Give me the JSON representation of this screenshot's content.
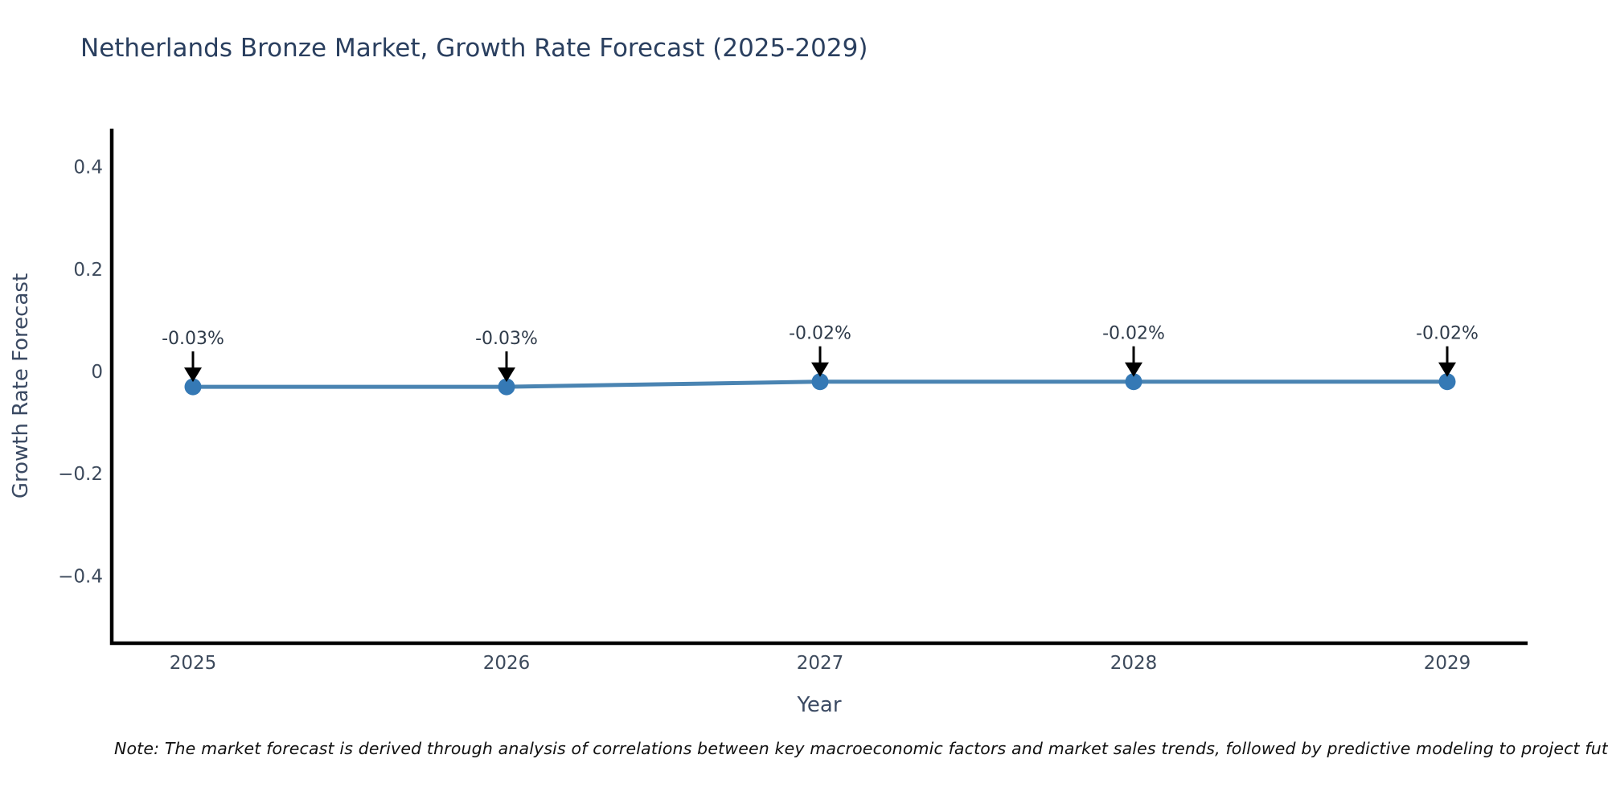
{
  "chart_data": {
    "type": "line",
    "title": "Netherlands Bronze Market, Growth Rate Forecast (2025-2029)",
    "xlabel": "Year",
    "ylabel": "Growth Rate Forecast",
    "categories": [
      "2025",
      "2026",
      "2027",
      "2028",
      "2029"
    ],
    "values": [
      -0.03,
      -0.03,
      -0.02,
      -0.02,
      -0.02
    ],
    "point_labels": [
      "-0.03%",
      "-0.03%",
      "-0.02%",
      "-0.02%",
      "-0.02%"
    ],
    "ytick_values": [
      0.4,
      0.2,
      0,
      -0.2,
      -0.4
    ],
    "ytick_labels": [
      "0.4",
      "0.2",
      "0",
      "−0.2",
      "−0.4"
    ],
    "ylim": [
      -0.53,
      0.48
    ],
    "grid": false,
    "legend": "none",
    "annotation_arrows": "down-to-point",
    "colors": {
      "line": "#4a84b2",
      "marker": "#3579b5",
      "axis": "#000000",
      "arrow": "#000000",
      "title_text": "#2a3f5f",
      "tick_text": "#3d4a5c",
      "annotation_text": "#2f3b4a",
      "note_text": "#111111",
      "background": "#ffffff"
    },
    "note": "Note: The market forecast is derived through analysis of correlations between key macroeconomic factors and market sales trends, followed by predictive modeling to project future sales"
  }
}
